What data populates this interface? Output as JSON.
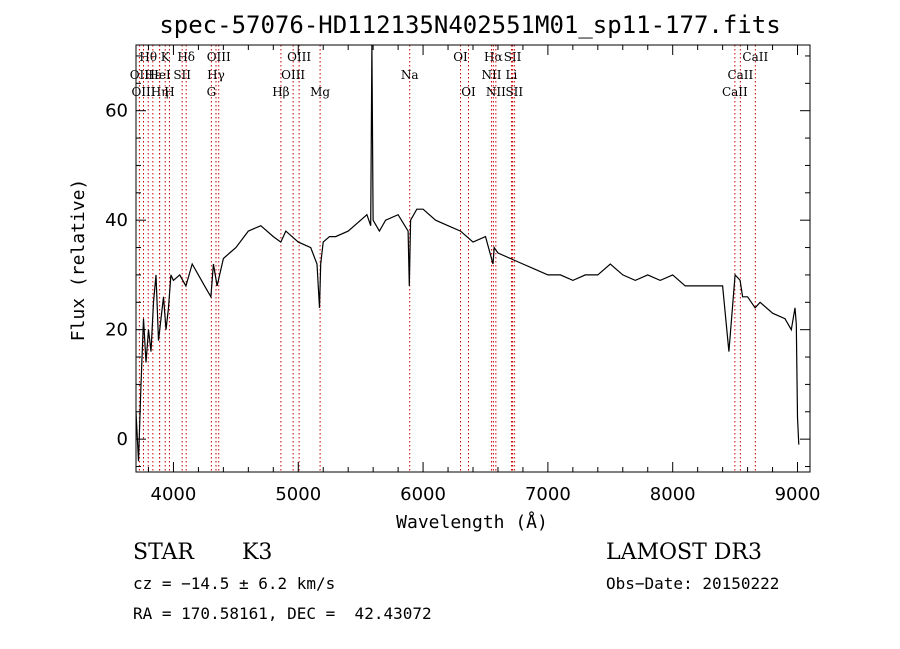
{
  "chart_data": {
    "type": "line",
    "title": "spec-57076-HD112135N402551M01_sp11-177.fits",
    "xlabel": "Wavelength (Å)",
    "ylabel": "Flux (relative)",
    "xlim": [
      3700,
      9100
    ],
    "ylim": [
      -6,
      72
    ],
    "xticks": [
      4000,
      5000,
      6000,
      7000,
      8000,
      9000
    ],
    "yticks": [
      0,
      20,
      40,
      60
    ],
    "line_color": "#cc0000",
    "series": [
      {
        "name": "flux",
        "x": [
          3700,
          3720,
          3740,
          3760,
          3780,
          3800,
          3820,
          3840,
          3860,
          3880,
          3900,
          3920,
          3940,
          3960,
          3980,
          4000,
          4050,
          4100,
          4150,
          4200,
          4250,
          4300,
          4320,
          4350,
          4400,
          4450,
          4500,
          4600,
          4700,
          4800,
          4860,
          4900,
          5000,
          5100,
          5150,
          5170,
          5180,
          5200,
          5250,
          5300,
          5400,
          5500,
          5550,
          5580,
          5590,
          5600,
          5650,
          5700,
          5800,
          5880,
          5890,
          5900,
          5950,
          6000,
          6100,
          6200,
          6300,
          6400,
          6500,
          6560,
          6570,
          6600,
          6700,
          6800,
          6900,
          7000,
          7100,
          7200,
          7300,
          7400,
          7500,
          7600,
          7700,
          7800,
          7900,
          8000,
          8100,
          8200,
          8300,
          8400,
          8450,
          8500,
          8540,
          8560,
          8600,
          8660,
          8700,
          8800,
          8900,
          8950,
          8980,
          8990,
          9000,
          9010
        ],
        "y": [
          5,
          -4,
          10,
          22,
          14,
          20,
          16,
          25,
          30,
          18,
          22,
          26,
          20,
          24,
          30,
          29,
          30,
          28,
          32,
          30,
          28,
          26,
          32,
          28,
          33,
          34,
          35,
          38,
          39,
          37,
          36,
          38,
          36,
          35,
          32,
          24,
          32,
          36,
          37,
          37,
          38,
          40,
          41,
          39,
          72,
          40,
          38,
          40,
          41,
          38,
          28,
          40,
          42,
          42,
          40,
          39,
          38,
          36,
          37,
          32,
          35,
          34,
          33,
          32,
          31,
          30,
          30,
          29,
          30,
          30,
          32,
          30,
          29,
          30,
          29,
          30,
          28,
          28,
          28,
          28,
          16,
          30,
          29,
          26,
          26,
          24,
          25,
          23,
          22,
          20,
          24,
          21,
          4,
          -1
        ]
      }
    ],
    "lines": [
      {
        "label": "Hθ",
        "x": 3798,
        "row": 1
      },
      {
        "label": "OII",
        "x": 3727,
        "row": 2
      },
      {
        "label": "OIII",
        "x": 3760,
        "row": 3
      },
      {
        "label": "Hε",
        "x": 3835,
        "row": 2
      },
      {
        "label": "Hη",
        "x": 3889,
        "row": 3
      },
      {
        "label": "K",
        "x": 3934,
        "row": 1
      },
      {
        "label": "H",
        "x": 3968,
        "row": 3
      },
      {
        "label": "HeI",
        "x": 3889,
        "row": 2
      },
      {
        "label": "SII",
        "x": 4070,
        "row": 2
      },
      {
        "label": "Hδ",
        "x": 4102,
        "row": 1
      },
      {
        "label": "OIII",
        "x": 4363,
        "row": 1
      },
      {
        "label": "Hγ",
        "x": 4341,
        "row": 2
      },
      {
        "label": "G",
        "x": 4304,
        "row": 3
      },
      {
        "label": "Hβ",
        "x": 4861,
        "row": 3
      },
      {
        "label": "OIII",
        "x": 5007,
        "row": 1
      },
      {
        "label": "OIII",
        "x": 4959,
        "row": 2
      },
      {
        "label": "Mg",
        "x": 5175,
        "row": 3
      },
      {
        "label": "Na",
        "x": 5893,
        "row": 2
      },
      {
        "label": "OI",
        "x": 6300,
        "row": 1
      },
      {
        "label": "OI",
        "x": 6364,
        "row": 3
      },
      {
        "label": "Hα",
        "x": 6563,
        "row": 1
      },
      {
        "label": "NII",
        "x": 6548,
        "row": 2
      },
      {
        "label": "NII",
        "x": 6583,
        "row": 3
      },
      {
        "label": "SII",
        "x": 6717,
        "row": 1
      },
      {
        "label": "Li",
        "x": 6708,
        "row": 2
      },
      {
        "label": "SII",
        "x": 6731,
        "row": 3
      },
      {
        "label": "CaII",
        "x": 8662,
        "row": 1
      },
      {
        "label": "CaII",
        "x": 8542,
        "row": 2
      },
      {
        "label": "CaII",
        "x": 8498,
        "row": 3
      }
    ]
  },
  "info": {
    "object_type": "STAR",
    "subclass": "K3",
    "survey": "LAMOST DR3",
    "cz": "cz = −14.5 ± 6.2 km/s",
    "obs_date": "Obs−Date: 20150222",
    "coords": "RA = 170.58161, DEC =  42.43072"
  }
}
